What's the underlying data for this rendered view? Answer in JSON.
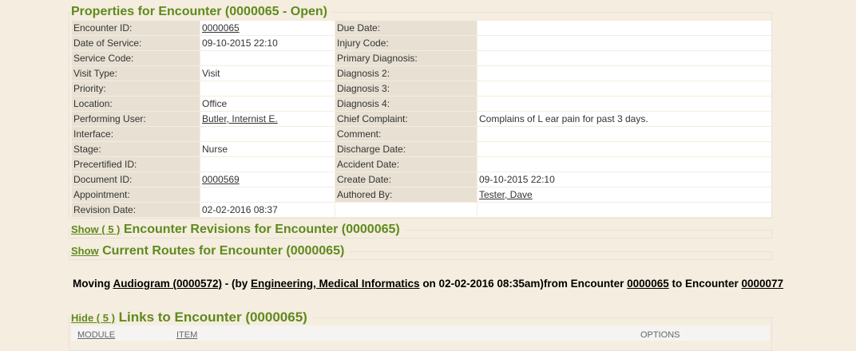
{
  "properties": {
    "title": "Properties for Encounter (0000065 - Open)",
    "rows": [
      {
        "l1": "Encounter ID:",
        "v1": "0000065",
        "v1_link": true,
        "l2": "Due Date:",
        "v2": ""
      },
      {
        "l1": "Date of Service:",
        "v1": "09-10-2015 22:10",
        "l2": "Injury Code:",
        "v2": ""
      },
      {
        "l1": "Service Code:",
        "v1": "",
        "l2": "Primary Diagnosis:",
        "v2": ""
      },
      {
        "l1": "Visit Type:",
        "v1": "Visit",
        "l2": "Diagnosis 2:",
        "v2": ""
      },
      {
        "l1": "Priority:",
        "v1": "",
        "l2": "Diagnosis 3:",
        "v2": ""
      },
      {
        "l1": "Location:",
        "v1": "Office",
        "l2": "Diagnosis 4:",
        "v2": ""
      },
      {
        "l1": "Performing User:",
        "v1": "Butler, Internist E.",
        "v1_link": true,
        "l2": "Chief Complaint:",
        "v2": "Complains of L ear pain for past 3 days."
      },
      {
        "l1": "Interface:",
        "v1": "",
        "l2": "Comment:",
        "v2": ""
      },
      {
        "l1": "Stage:",
        "v1": "Nurse",
        "l2": "Discharge Date:",
        "v2": ""
      },
      {
        "l1": "Precertified ID:",
        "v1": "",
        "l2": "Accident Date:",
        "v2": ""
      },
      {
        "l1": "Document ID:",
        "v1": "0000569",
        "v1_link": true,
        "l2": "Create Date:",
        "v2": "09-10-2015 22:10"
      },
      {
        "l1": "Appointment:",
        "v1": "",
        "l2": "Authored By:",
        "v2": "Tester, Dave",
        "v2_link": true
      },
      {
        "l1": "Revision Date:",
        "v1": "02-02-2016 08:37"
      }
    ]
  },
  "revisions": {
    "toggle": "Show ( 5 )",
    "title": "Encounter Revisions for Encounter (0000065)"
  },
  "routes": {
    "toggle": "Show",
    "title": "Current Routes for Encounter (0000065)"
  },
  "moving": {
    "p1": "Moving ",
    "doc": "Audiogram (0000572)",
    "p2": " - (by ",
    "user": "Engineering, Medical Informatics",
    "p3": " on 02-02-2016 08:35am)from Encounter ",
    "from": "0000065",
    "p4": " to Encounter ",
    "to": "0000077"
  },
  "links": {
    "toggle": "Hide ( 5 )",
    "title": "Links to Encounter (0000065)",
    "columns": [
      "MODULE",
      "ITEM",
      "OPTIONS"
    ]
  }
}
